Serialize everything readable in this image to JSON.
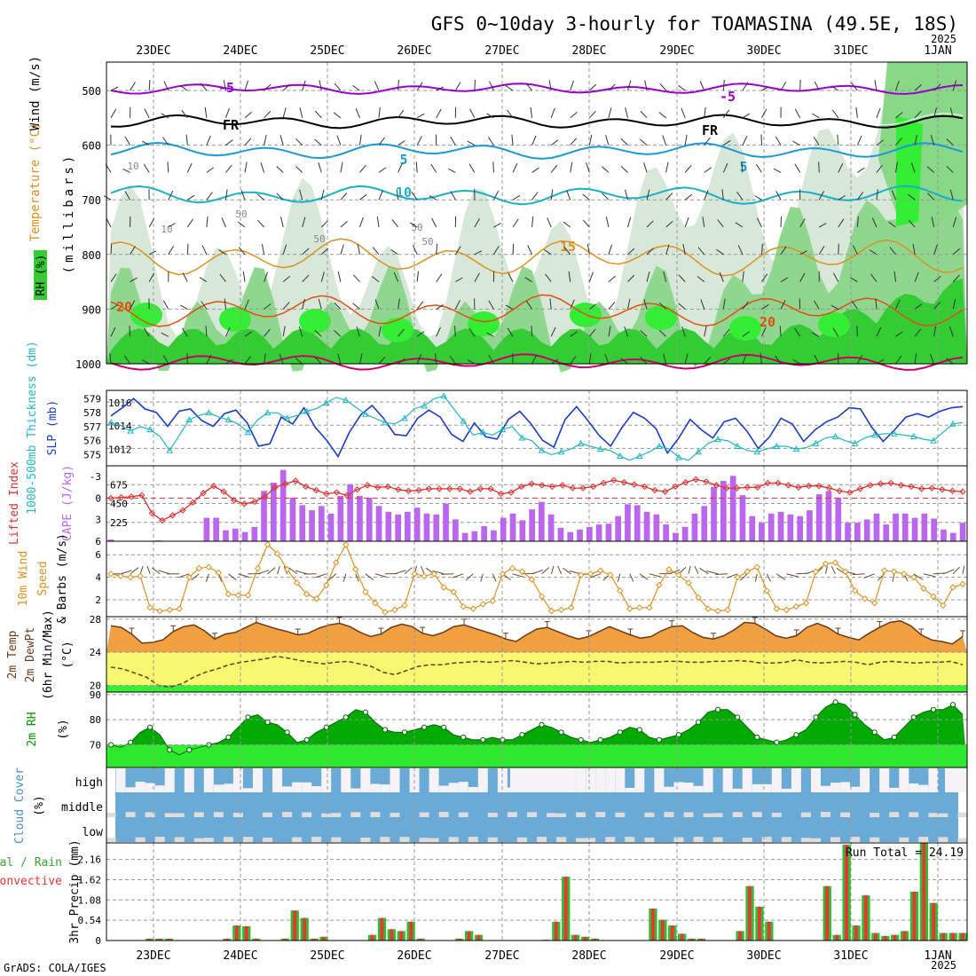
{
  "title": "GFS 0~10day 3-hourly for TOAMASINA (49.5E, 18S)",
  "year_label": "2025",
  "credit": "GrADS: COLA/IGES",
  "dates": [
    "23DEC",
    "24DEC",
    "25DEC",
    "26DEC",
    "27DEC",
    "28DEC",
    "29DEC",
    "30DEC",
    "31DEC",
    "1JAN"
  ],
  "colors": {
    "rh_fill": "#33cc33",
    "rh_light": "#e6f0e6",
    "iso_purple": "#9900cc",
    "iso_black": "#000000",
    "iso_blue": "#1a9ad6",
    "iso_cyan": "#1ab0c8",
    "iso_orange": "#e09020",
    "iso_red": "#e05010",
    "iso_crimson": "#cc0066",
    "slp": "#1a3cc8",
    "thickness": "#20b8c0",
    "cape": "#bb66ee",
    "li": "#e03030",
    "wind_speed": "#e09020",
    "temp_fill": "#f0a040",
    "dew_fill": "#f8f870",
    "low_fill": "#33ee33",
    "rh2m_dark": "#00aa00",
    "rh2m_light": "#33ee33",
    "cloud_blue": "#6aaad6",
    "cloud_gray": "#dddddd",
    "precip_total": "#33bb33",
    "precip_conv": "#ee3333"
  },
  "panels": {
    "upper": {
      "ylabel": "(millibars)",
      "side_labels": [
        "Wind (m/s)",
        "Temperature (°C)",
        "RH (%)"
      ],
      "ticks": [
        500,
        600,
        700,
        800,
        900,
        1000
      ],
      "isotherm_labels": [
        "-5",
        "FR",
        "-5",
        "FR",
        "5",
        "5",
        "10",
        "15",
        "20",
        "20"
      ],
      "rh_labels": [
        "10",
        "10",
        "50",
        "50",
        "50",
        "50"
      ]
    },
    "slp_thk": {
      "ylabel_left": "1000-500mb Thickness (dm)",
      "ylabel_right": "SLP (mb)",
      "thk_ticks": [
        575,
        576,
        577,
        578,
        579
      ],
      "slp_ticks": [
        1012,
        1014,
        1016
      ],
      "slp_range": [
        1010.5,
        1017.0
      ],
      "thk_range": [
        574.2,
        579.6
      ],
      "slp": [
        1014.8,
        1015.5,
        1016.3,
        1015.4,
        1015.1,
        1013.9,
        1015.2,
        1015.4,
        1014.4,
        1013.9,
        1015.0,
        1015.3,
        1014.2,
        1012.2,
        1012.4,
        1014.7,
        1014.1,
        1015.5,
        1013.8,
        1012.7,
        1011.3,
        1013.4,
        1014.9,
        1015.7,
        1014.6,
        1013.2,
        1013.1,
        1014.6,
        1015.3,
        1014.7,
        1013.2,
        1012.6,
        1014.2,
        1013.0,
        1012.8,
        1014.5,
        1015.2,
        1014.1,
        1012.7,
        1012.1,
        1014.5,
        1015.6,
        1014.4,
        1013.1,
        1012.2,
        1013.8,
        1015.1,
        1014.6,
        1013.7,
        1011.6,
        1012.9,
        1014.5,
        1013.6,
        1012.9,
        1014.3,
        1014.6,
        1013.5,
        1012.0,
        1013.0,
        1014.6,
        1014.1,
        1012.6,
        1013.6,
        1014.3,
        1014.7,
        1015.5,
        1015.4,
        1013.8,
        1012.6,
        1013.6,
        1014.7,
        1015.0,
        1014.7,
        1015.2,
        1015.5,
        1015.6
      ],
      "thickness": [
        577.3,
        577.1,
        576.7,
        577.0,
        576.8,
        576.3,
        575.3,
        576.4,
        577.5,
        577.8,
        578.0,
        577.7,
        577.5,
        577.2,
        576.6,
        577.5,
        578.0,
        578.0,
        577.6,
        577.8,
        578.1,
        578.3,
        578.7,
        579.1,
        578.9,
        578.4,
        577.9,
        577.6,
        577.3,
        577.2,
        577.6,
        578.3,
        578.5,
        579.0,
        579.2,
        578.3,
        577.4,
        576.4,
        576.6,
        576.4,
        576.8,
        577.0,
        576.2,
        576.0,
        575.3,
        575.0,
        575.2,
        575.4,
        575.8,
        575.6,
        575.4,
        575.3,
        574.9,
        574.6,
        574.9,
        575.2,
        575.6,
        575.4,
        574.8,
        574.6,
        575.2,
        575.8,
        576.1,
        576.0,
        575.6,
        575.3,
        575.2,
        575.4,
        575.6,
        575.6,
        575.4,
        575.5,
        575.8,
        576.2,
        576.3,
        576.0,
        575.8,
        576.2,
        576.4,
        576.5,
        576.5,
        576.4,
        576.3,
        576.1,
        576.0,
        576.6,
        577.2,
        577.3
      ]
    },
    "cape_li": {
      "ylabel_left": "Lifted Index",
      "ylabel_right": "CAPE (J/kg)",
      "li_ticks": [
        "-3",
        "0",
        "3",
        "6"
      ],
      "li_range": [
        -4.5,
        6
      ],
      "cape_ticks": [
        225,
        450,
        675
      ],
      "cape_range": [
        0,
        900
      ],
      "cape": [
        20,
        0,
        0,
        0,
        0,
        10,
        0,
        0,
        0,
        0,
        280,
        280,
        130,
        150,
        110,
        170,
        600,
        700,
        850,
        520,
        430,
        370,
        420,
        330,
        540,
        680,
        540,
        520,
        420,
        350,
        320,
        350,
        400,
        330,
        320,
        450,
        260,
        100,
        120,
        180,
        130,
        280,
        330,
        250,
        380,
        470,
        320,
        160,
        110,
        140,
        170,
        200,
        210,
        300,
        440,
        430,
        350,
        320,
        200,
        100,
        170,
        330,
        420,
        650,
        720,
        780,
        550,
        300,
        220,
        330,
        350,
        320,
        300,
        370,
        560,
        600,
        520,
        220,
        220,
        260,
        330,
        200,
        330,
        330,
        280,
        330,
        270,
        140,
        100,
        220
      ],
      "li": [
        0.0,
        -0.1,
        -0.2,
        -0.4,
        2.1,
        3.1,
        2.4,
        1.7,
        0.6,
        -0.7,
        -1.7,
        -0.9,
        0.3,
        0.8,
        0.5,
        -0.2,
        -1.5,
        -2.0,
        -2.4,
        -1.6,
        -1.1,
        -0.6,
        -0.8,
        -0.4,
        -1.2,
        -1.8,
        -1.5,
        -1.6,
        -1.2,
        -1.0,
        -1.1,
        -1.3,
        -1.3,
        -1.3,
        -1.3,
        -0.9,
        -1.3,
        -1.3,
        -0.6,
        -0.8,
        -1.6,
        -2.0,
        -1.8,
        -1.6,
        -1.8,
        -1.4,
        -1.4,
        -1.6,
        -2.1,
        -2.5,
        -2.2,
        -1.9,
        -1.6,
        -1.1,
        -0.9,
        -1.6,
        -2.2,
        -2.6,
        -2.3,
        -1.8,
        -1.4,
        -1.4,
        -1.5,
        -1.5,
        -2.1,
        -2.1,
        -1.8,
        -1.5,
        -1.7,
        -1.7,
        -1.4,
        -1.0,
        -0.8,
        -1.3,
        -1.8,
        -2.0,
        -2.1,
        -1.8,
        -1.6,
        -1.3,
        -1.4,
        -1.2,
        -1.0,
        -0.9
      ]
    },
    "wind10": {
      "ylabel": "10m Wind Speed & Barbs (m/s)",
      "ticks": [
        2,
        4,
        6
      ],
      "range": [
        0.5,
        7.2
      ],
      "speed": [
        4.3,
        4.1,
        4.0,
        4.1,
        1.3,
        1.0,
        1.1,
        1.2,
        4.0,
        4.8,
        4.9,
        4.4,
        2.5,
        2.4,
        2.4,
        4.8,
        6.9,
        6.1,
        4.7,
        3.5,
        2.5,
        2.1,
        3.3,
        5.3,
        6.9,
        4.7,
        2.7,
        1.7,
        0.9,
        1.1,
        1.5,
        4.3,
        4.1,
        4.3,
        3.1,
        2.7,
        1.4,
        1.2,
        1.6,
        1.9,
        4.3,
        4.8,
        4.5,
        3.8,
        2.3,
        1.0,
        1.1,
        1.3,
        4.2,
        4.3,
        4.6,
        4.2,
        2.8,
        1.2,
        1.3,
        1.3,
        3.3,
        4.7,
        4.2,
        3.5,
        2.2,
        1.2,
        1.0,
        1.1,
        4.0,
        4.5,
        4.9,
        2.8,
        1.2,
        1.1,
        1.4,
        1.7,
        4.5,
        5.2,
        5.3,
        4.5,
        2.8,
        2.1,
        1.7,
        4.6,
        4.5,
        4.3,
        4.0,
        3.0,
        2.3,
        1.5,
        3.1,
        3.4
      ]
    },
    "temp2m": {
      "ylabel": "2m Temp 2m DewPt (6hr Min/Max) (°C)",
      "ticks": [
        20,
        24,
        28
      ],
      "range": [
        19.2,
        28.3
      ],
      "temp": [
        27.2,
        27.0,
        26.2,
        25.1,
        25.2,
        25.5,
        26.5,
        27.1,
        27.3,
        26.6,
        25.6,
        26.2,
        26.4,
        27.0,
        27.6,
        27.2,
        26.8,
        26.5,
        26.1,
        26.3,
        26.9,
        27.3,
        27.5,
        27.1,
        26.4,
        25.9,
        26.2,
        27.0,
        27.4,
        27.1,
        26.3,
        26.0,
        26.4,
        27.1,
        27.3,
        26.9,
        26.5,
        26.1,
        25.6,
        25.3,
        26.1,
        26.8,
        27.0,
        26.5,
        26.0,
        25.6,
        25.9,
        26.5,
        27.1,
        26.6,
        26.1,
        25.7,
        25.9,
        26.6,
        27.1,
        27.2,
        26.4,
        25.8,
        25.6,
        26.0,
        26.7,
        27.6,
        27.5,
        26.8,
        26.0,
        25.7,
        26.0,
        27.0,
        27.5,
        27.0,
        26.2,
        25.8,
        25.5,
        26.3,
        27.0,
        27.6,
        27.8,
        27.2,
        26.1,
        25.5,
        25.3,
        25.0,
        25.9
      ],
      "dew": [
        22.2,
        22.0,
        21.5,
        21.0,
        20.0,
        19.8,
        20.2,
        21.0,
        21.6,
        22.0,
        22.5,
        22.8,
        23.0,
        23.2,
        23.5,
        23.3,
        23.0,
        22.8,
        22.6,
        22.8,
        22.9,
        22.6,
        22.3,
        21.6,
        21.3,
        21.8,
        22.3,
        22.5,
        22.5,
        22.7,
        22.8,
        22.9,
        22.8,
        22.9,
        23.0,
        22.8,
        22.6,
        22.7,
        22.8,
        22.9,
        22.8,
        22.9,
        22.9,
        22.7,
        22.8,
        22.8,
        22.8,
        22.9,
        22.9,
        22.8,
        22.8,
        22.9,
        22.9,
        23.0,
        22.9,
        22.7,
        22.7,
        22.8,
        23.1,
        22.8,
        22.7,
        22.8,
        22.9,
        22.8,
        22.5,
        22.8,
        22.9,
        22.8,
        22.7,
        22.8,
        22.8,
        22.9,
        22.5
      ]
    },
    "rh2m": {
      "ylabel": "2m RH (%)",
      "ticks": [
        70,
        80,
        90
      ],
      "range": [
        61,
        91
      ],
      "rh": [
        70,
        69,
        71,
        75,
        77,
        74,
        68,
        66,
        68,
        69,
        70,
        71,
        73,
        77,
        81,
        82,
        79,
        78,
        75,
        71,
        72,
        75,
        77,
        79,
        81,
        84,
        83,
        79,
        76,
        75,
        75,
        76,
        77,
        78,
        77,
        74,
        73,
        72,
        72,
        73,
        72,
        72,
        74,
        76,
        78,
        77,
        75,
        73,
        72,
        71,
        72,
        73,
        75,
        77,
        76,
        73,
        72,
        73,
        74,
        76,
        79,
        83,
        84,
        84,
        81,
        77,
        73,
        72,
        71,
        72,
        74,
        76,
        81,
        85,
        87,
        86,
        82,
        78,
        75,
        72,
        73,
        77,
        81,
        83,
        84,
        84,
        86,
        82
      ]
    },
    "cloud": {
      "ylabel": "Cloud Cover (%)",
      "levels": [
        "high",
        "middle",
        "low"
      ]
    },
    "precip": {
      "ylabel": "3hr Precip (mm)",
      "side_total": "Total / Rain",
      "side_conv": "Convective",
      "run_total_text": "Run Total = 24.19",
      "ticks": [
        "0",
        "0.54",
        "1.08",
        "1.62",
        "2.16"
      ],
      "range": [
        0,
        2.6
      ],
      "total": [
        0,
        0,
        0,
        0,
        0.05,
        0.05,
        0.05,
        0,
        0,
        0,
        0,
        0,
        0.05,
        0.4,
        0.38,
        0.05,
        0,
        0,
        0.05,
        0.8,
        0.6,
        0.05,
        0.1,
        0,
        0,
        0,
        0,
        0.15,
        0.6,
        0.3,
        0.25,
        0.5,
        0.05,
        0,
        0,
        0,
        0.05,
        0.25,
        0.15,
        0,
        0,
        0,
        0,
        0,
        0,
        0.02,
        0.5,
        1.7,
        0.15,
        0.1,
        0.05,
        0,
        0,
        0,
        0,
        0,
        0.85,
        0.55,
        0.4,
        0.18,
        0.05,
        0.05,
        0,
        0,
        0,
        0.25,
        1.45,
        0.9,
        0.5,
        0,
        0,
        0,
        0,
        0,
        1.45,
        0.15,
        2.55,
        0.4,
        1.2,
        0.2,
        0.12,
        0.15,
        0.25,
        1.3,
        2.6,
        1.0,
        0.2,
        0.2,
        0.2
      ]
    }
  },
  "chart_data": {
    "type": "line",
    "title": "GFS 0~10day 3-hourly for TOAMASINA (49.5E, 18S)",
    "x": [
      "23DEC",
      "24DEC",
      "25DEC",
      "26DEC",
      "27DEC",
      "28DEC",
      "29DEC",
      "30DEC",
      "31DEC",
      "1JAN"
    ],
    "series": [
      {
        "name": "SLP (mb)",
        "panel": "slp_thk"
      },
      {
        "name": "1000-500mb Thickness (dm)",
        "panel": "slp_thk"
      },
      {
        "name": "CAPE (J/kg)",
        "panel": "cape_li"
      },
      {
        "name": "Lifted Index",
        "panel": "cape_li"
      },
      {
        "name": "10m Wind Speed (m/s)",
        "panel": "wind10"
      },
      {
        "name": "2m Temp (°C)",
        "panel": "temp2m"
      },
      {
        "name": "2m DewPt (°C)",
        "panel": "temp2m"
      },
      {
        "name": "2m RH (%)",
        "panel": "rh2m"
      },
      {
        "name": "3hr Precip (mm)",
        "panel": "precip"
      }
    ],
    "grid": true
  }
}
